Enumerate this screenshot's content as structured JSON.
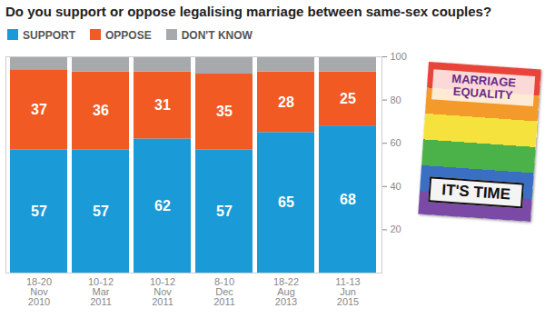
{
  "chart_data": {
    "type": "bar",
    "title": "Do you support or oppose legalising marriage between same-sex couples?",
    "categories": [
      "18-20 Nov 2010",
      "10-12 Mar 2011",
      "10-12 Nov 2011",
      "8-10 Dec 2011",
      "18-22 Aug 2013",
      "11-13 Jun 2015"
    ],
    "series": [
      {
        "name": "SUPPORT",
        "color": "#1a9ad6",
        "values": [
          57,
          57,
          62,
          57,
          65,
          68
        ],
        "data_labels": true
      },
      {
        "name": "OPPOSE",
        "color": "#f15a22",
        "values": [
          37,
          36,
          31,
          35,
          28,
          25
        ],
        "data_labels": true
      },
      {
        "name": "DON'T KNOW",
        "color": "#a7a9ac",
        "values": [
          6,
          7,
          7,
          8,
          7,
          7
        ],
        "data_labels": false
      }
    ],
    "stacked": true,
    "ylim": [
      0,
      100
    ],
    "yticks": [
      20,
      40,
      60,
      80,
      100
    ],
    "grid": false,
    "legend": "top",
    "annotations": [
      "MARRIAGE EQUALITY",
      "IT'S TIME"
    ]
  }
}
